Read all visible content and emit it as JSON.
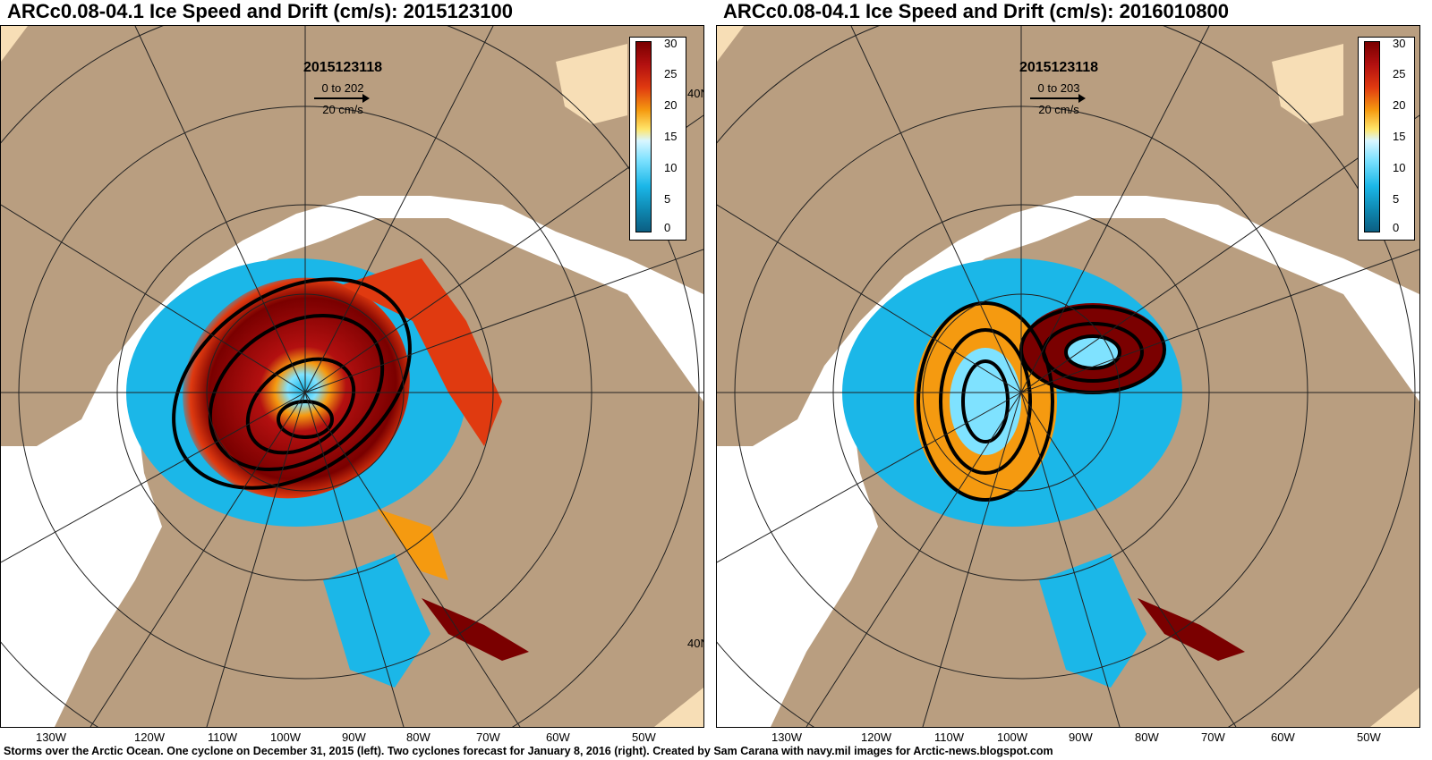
{
  "panels": [
    {
      "title": "ARCc0.08-04.1 Ice Speed and Drift (cm/s): 2015123100",
      "timestamp": "2015123118",
      "scale_range": "0 to 202",
      "scale_unit": "20 cm/s",
      "lat_label_upper": "40N",
      "lat_label_lower": "40N",
      "cyclones": 1
    },
    {
      "title": "ARCc0.08-04.1 Ice Speed and Drift (cm/s): 2016010800",
      "timestamp": "2015123118",
      "scale_range": "0 to 203",
      "scale_unit": "20 cm/s",
      "cyclones": 2
    }
  ],
  "colorbar": {
    "ticks": [
      "30",
      "25",
      "20",
      "15",
      "10",
      "5",
      "0"
    ],
    "colors": [
      "#7a0000",
      "#d32a10",
      "#f59a10",
      "#ffe56a",
      "#7fe2ff",
      "#1bb7e8",
      "#0b5e82"
    ]
  },
  "longitudes": [
    "130W",
    "120W",
    "110W",
    "100W",
    "90W",
    "80W",
    "70W",
    "60W",
    "50W"
  ],
  "caption": "Storms over the Arctic Ocean. One cyclone on December 31, 2015 (left). Two cyclones forecast for January 8, 2016 (right). Created by Sam Carana with navy.mil images for Arctic-news.blogspot.com",
  "colors": {
    "land": "#b99e80",
    "ocean": "#ffffff",
    "greenland": "#f7deb6",
    "grid": "#222222"
  }
}
